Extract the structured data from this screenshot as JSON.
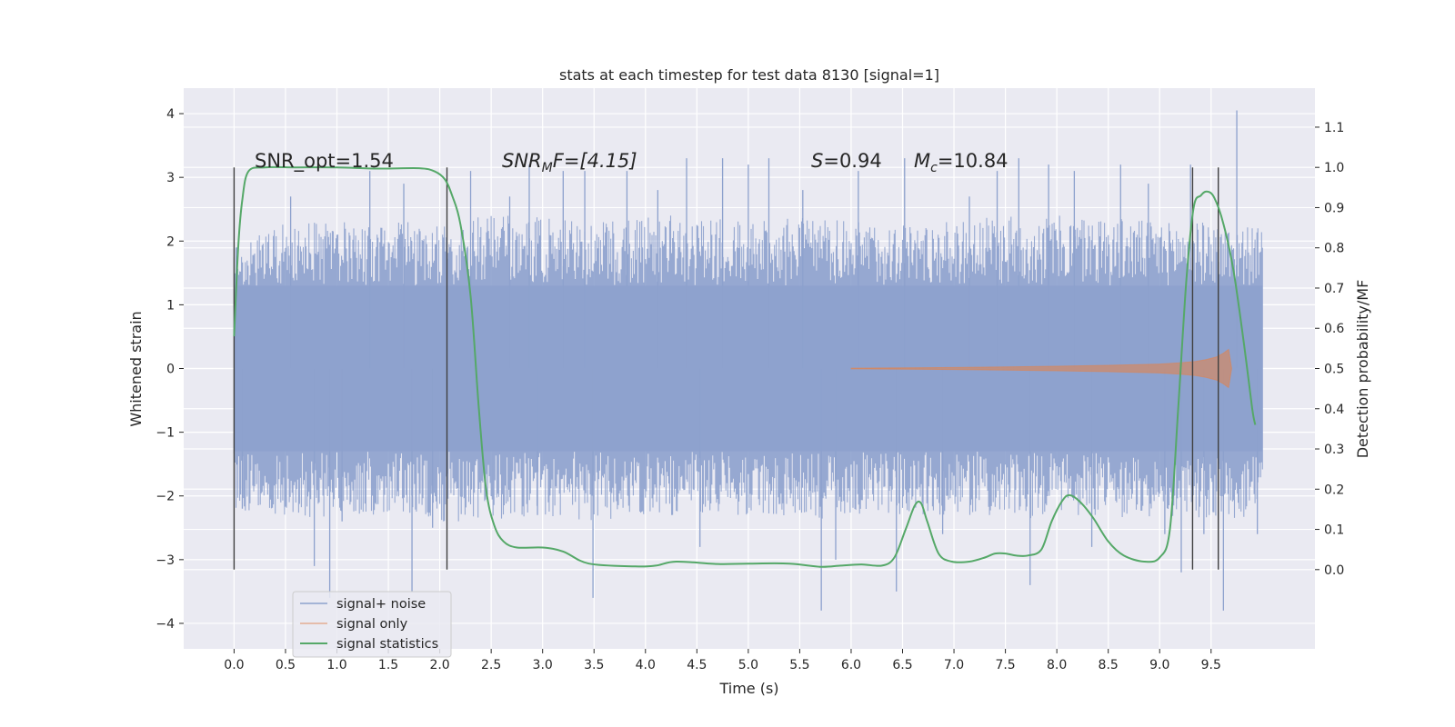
{
  "chart_data": {
    "type": "line",
    "title": "stats at each timestep for test data 8130 [signal=1]",
    "xlabel": "Time (s)",
    "ylabel": "Whitened strain",
    "y2label": "Detection probability/MF",
    "xlim": [
      -0.49,
      10.51
    ],
    "ylim": [
      -4.4,
      4.4
    ],
    "y2lim": [
      -0.197,
      1.197
    ],
    "x_ticks": [
      "0.0",
      "0.5",
      "1.0",
      "1.5",
      "2.0",
      "2.5",
      "3.0",
      "3.5",
      "4.0",
      "4.5",
      "5.0",
      "5.5",
      "6.0",
      "6.5",
      "7.0",
      "7.5",
      "8.0",
      "8.5",
      "9.0",
      "9.5"
    ],
    "x_tick_values": [
      0,
      0.5,
      1,
      1.5,
      2,
      2.5,
      3,
      3.5,
      4,
      4.5,
      5,
      5.5,
      6,
      6.5,
      7,
      7.5,
      8,
      8.5,
      9,
      9.5
    ],
    "y_ticks": [
      "4",
      "3",
      "2",
      "1",
      "0",
      "−1",
      "−2",
      "−3",
      "−4"
    ],
    "y_tick_values": [
      4,
      3,
      2,
      1,
      0,
      -1,
      -2,
      -3,
      -4
    ],
    "y2_ticks": [
      "1.1",
      "1.0",
      "0.9",
      "0.8",
      "0.7",
      "0.6",
      "0.5",
      "0.4",
      "0.3",
      "0.2",
      "0.1",
      "0.0"
    ],
    "y2_tick_values": [
      1.1,
      1.0,
      0.9,
      0.8,
      0.7,
      0.6,
      0.5,
      0.4,
      0.3,
      0.2,
      0.1,
      0.0
    ],
    "grid": true,
    "legend_position": "lower-left",
    "annotations": {
      "snr_opt": "SNR_opt=1.54",
      "snr_mf_main": "SNR",
      "snr_mf_sub": "M",
      "snr_mf_rest": "F=[4.15]",
      "s_main": "S",
      "s_rest": "=0.94",
      "mc_main": "M",
      "mc_sub": "c",
      "mc_rest": "=10.84"
    },
    "vertical_markers_x": [
      0.0,
      2.07,
      9.32,
      9.57
    ],
    "series": [
      {
        "name": "signal+ noise",
        "color": "#8da1cd",
        "x_range": [
          0.0,
          10.0
        ],
        "envelope_upper": [
          [
            0,
            1.9
          ],
          [
            0.5,
            2.3
          ],
          [
            1,
            2.3
          ],
          [
            1.5,
            2.3
          ],
          [
            2,
            2.3
          ],
          [
            2.5,
            2.4
          ],
          [
            3,
            2.4
          ],
          [
            3.5,
            2.3
          ],
          [
            4,
            2.4
          ],
          [
            4.5,
            2.4
          ],
          [
            5,
            2.3
          ],
          [
            5.5,
            2.4
          ],
          [
            6,
            2.3
          ],
          [
            6.5,
            2.3
          ],
          [
            7,
            2.3
          ],
          [
            7.5,
            2.4
          ],
          [
            8,
            2.4
          ],
          [
            8.5,
            2.4
          ],
          [
            9,
            2.3
          ],
          [
            9.5,
            2.3
          ],
          [
            10,
            2.2
          ]
        ],
        "envelope_lower": [
          [
            0,
            -2.2
          ],
          [
            0.5,
            -2.4
          ],
          [
            1,
            -2.3
          ],
          [
            1.5,
            -2.3
          ],
          [
            2,
            -2.4
          ],
          [
            2.5,
            -2.4
          ],
          [
            3,
            -2.3
          ],
          [
            3.5,
            -2.4
          ],
          [
            4,
            -2.3
          ],
          [
            4.5,
            -2.3
          ],
          [
            5,
            -2.3
          ],
          [
            5.5,
            -2.4
          ],
          [
            6,
            -2.3
          ],
          [
            6.5,
            -2.3
          ],
          [
            7,
            -2.3
          ],
          [
            7.5,
            -2.4
          ],
          [
            8,
            -2.3
          ],
          [
            8.5,
            -2.4
          ],
          [
            9,
            -2.3
          ],
          [
            9.5,
            -2.4
          ],
          [
            10,
            -2.3
          ]
        ],
        "core_amplitude": 1.3,
        "spikes": [
          [
            0.03,
            1.9
          ],
          [
            0.08,
            -2.2
          ],
          [
            0.55,
            2.7
          ],
          [
            0.78,
            -3.1
          ],
          [
            0.93,
            -3.6
          ],
          [
            1.05,
            -2.4
          ],
          [
            1.32,
            3.1
          ],
          [
            1.65,
            2.9
          ],
          [
            1.73,
            -3.5
          ],
          [
            1.93,
            -2.5
          ],
          [
            2.3,
            3.1
          ],
          [
            2.68,
            2.7
          ],
          [
            2.87,
            3.2
          ],
          [
            2.95,
            -2.3
          ],
          [
            3.2,
            3.1
          ],
          [
            3.41,
            3.1
          ],
          [
            3.49,
            -3.6
          ],
          [
            3.82,
            3.1
          ],
          [
            4.12,
            2.8
          ],
          [
            4.4,
            3.3
          ],
          [
            4.53,
            -2.8
          ],
          [
            4.75,
            3.3
          ],
          [
            5.0,
            3.2
          ],
          [
            5.2,
            3.3
          ],
          [
            5.53,
            2.8
          ],
          [
            5.71,
            -3.8
          ],
          [
            5.85,
            -3.0
          ],
          [
            6.07,
            3.1
          ],
          [
            6.44,
            -3.5
          ],
          [
            6.52,
            3.3
          ],
          [
            6.89,
            -2.6
          ],
          [
            7.15,
            2.7
          ],
          [
            7.42,
            3.1
          ],
          [
            7.63,
            3.3
          ],
          [
            7.74,
            -3.4
          ],
          [
            7.92,
            3.2
          ],
          [
            8.17,
            3.1
          ],
          [
            8.34,
            -2.8
          ],
          [
            8.62,
            3.2
          ],
          [
            8.89,
            2.9
          ],
          [
            9.05,
            -2.6
          ],
          [
            9.21,
            -3.2
          ],
          [
            9.3,
            3.2
          ],
          [
            9.43,
            -2.6
          ],
          [
            9.62,
            -3.8
          ],
          [
            9.75,
            4.05
          ],
          [
            9.95,
            -2.6
          ]
        ]
      },
      {
        "name": "signal only",
        "color": "#dd8452",
        "points": [
          [
            6.0,
            0.005
          ],
          [
            7.0,
            0.015
          ],
          [
            7.5,
            0.025
          ],
          [
            8.0,
            0.035
          ],
          [
            8.5,
            0.05
          ],
          [
            9.0,
            0.07
          ],
          [
            9.2,
            0.09
          ],
          [
            9.35,
            0.11
          ],
          [
            9.45,
            0.14
          ],
          [
            9.55,
            0.18
          ],
          [
            9.62,
            0.24
          ],
          [
            9.67,
            0.3
          ],
          [
            9.7,
            0.0
          ]
        ]
      },
      {
        "name": "signal statistics",
        "color": "#55a868",
        "axis": "right",
        "points": [
          [
            0.0,
            0.58
          ],
          [
            0.04,
            0.8
          ],
          [
            0.08,
            0.92
          ],
          [
            0.14,
            0.99
          ],
          [
            0.3,
            1.0
          ],
          [
            0.6,
            1.0
          ],
          [
            1.0,
            1.0
          ],
          [
            1.4,
            0.997
          ],
          [
            1.8,
            0.998
          ],
          [
            1.95,
            0.99
          ],
          [
            2.05,
            0.97
          ],
          [
            2.12,
            0.93
          ],
          [
            2.2,
            0.86
          ],
          [
            2.3,
            0.68
          ],
          [
            2.38,
            0.4
          ],
          [
            2.45,
            0.2
          ],
          [
            2.53,
            0.11
          ],
          [
            2.62,
            0.07
          ],
          [
            2.75,
            0.055
          ],
          [
            3.0,
            0.055
          ],
          [
            3.2,
            0.045
          ],
          [
            3.45,
            0.015
          ],
          [
            3.9,
            0.008
          ],
          [
            4.1,
            0.01
          ],
          [
            4.3,
            0.02
          ],
          [
            4.7,
            0.014
          ],
          [
            5.0,
            0.015
          ],
          [
            5.4,
            0.015
          ],
          [
            5.7,
            0.007
          ],
          [
            5.9,
            0.01
          ],
          [
            6.1,
            0.013
          ],
          [
            6.3,
            0.01
          ],
          [
            6.42,
            0.03
          ],
          [
            6.53,
            0.1
          ],
          [
            6.62,
            0.16
          ],
          [
            6.68,
            0.165
          ],
          [
            6.74,
            0.12
          ],
          [
            6.85,
            0.04
          ],
          [
            6.98,
            0.02
          ],
          [
            7.15,
            0.02
          ],
          [
            7.3,
            0.03
          ],
          [
            7.4,
            0.04
          ],
          [
            7.5,
            0.04
          ],
          [
            7.6,
            0.035
          ],
          [
            7.72,
            0.035
          ],
          [
            7.85,
            0.05
          ],
          [
            7.95,
            0.12
          ],
          [
            8.05,
            0.17
          ],
          [
            8.12,
            0.185
          ],
          [
            8.22,
            0.17
          ],
          [
            8.35,
            0.13
          ],
          [
            8.5,
            0.07
          ],
          [
            8.65,
            0.035
          ],
          [
            8.85,
            0.02
          ],
          [
            9.0,
            0.03
          ],
          [
            9.1,
            0.1
          ],
          [
            9.18,
            0.4
          ],
          [
            9.26,
            0.72
          ],
          [
            9.33,
            0.9
          ],
          [
            9.4,
            0.93
          ],
          [
            9.46,
            0.94
          ],
          [
            9.53,
            0.925
          ],
          [
            9.62,
            0.86
          ],
          [
            9.72,
            0.74
          ],
          [
            9.82,
            0.56
          ],
          [
            9.9,
            0.4
          ],
          [
            9.93,
            0.36
          ]
        ]
      }
    ]
  }
}
